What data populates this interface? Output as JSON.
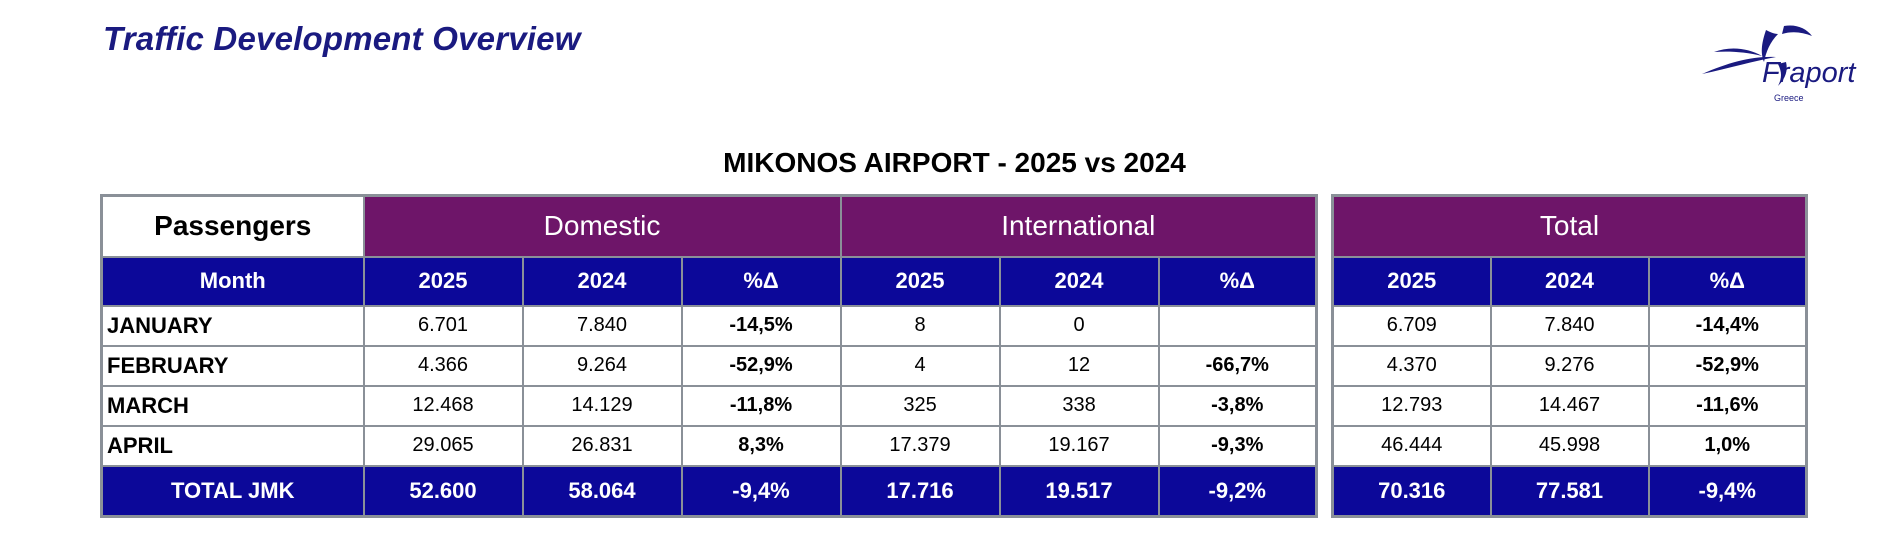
{
  "header": {
    "title": "Traffic Development Overview",
    "logo_text": "Fraport",
    "logo_subtext": "Greece",
    "logo_color": "#1a1a80"
  },
  "report_title": "MIKONOS AIRPORT  - 2025 vs 2024",
  "table": {
    "corner_label": "Passengers",
    "groups": {
      "domestic": "Domestic",
      "international": "International",
      "total": "Total"
    },
    "month_header": "Month",
    "sub_headers": [
      "2025",
      "2024",
      "%Δ"
    ],
    "rows": [
      {
        "month": "JANUARY",
        "dom": [
          "6.701",
          "7.840",
          "-14,5%"
        ],
        "intl": [
          "8",
          "0",
          ""
        ],
        "tot": [
          "6.709",
          "7.840",
          "-14,4%"
        ]
      },
      {
        "month": "FEBRUARY",
        "dom": [
          "4.366",
          "9.264",
          "-52,9%"
        ],
        "intl": [
          "4",
          "12",
          "-66,7%"
        ],
        "tot": [
          "4.370",
          "9.276",
          "-52,9%"
        ]
      },
      {
        "month": "MARCH",
        "dom": [
          "12.468",
          "14.129",
          "-11,8%"
        ],
        "intl": [
          "325",
          "338",
          "-3,8%"
        ],
        "tot": [
          "12.793",
          "14.467",
          "-11,6%"
        ]
      },
      {
        "month": "APRIL",
        "dom": [
          "29.065",
          "26.831",
          "8,3%"
        ],
        "intl": [
          "17.379",
          "19.167",
          "-9,3%"
        ],
        "tot": [
          "46.444",
          "45.998",
          "1,0%"
        ]
      }
    ],
    "total_row": {
      "label": "TOTAL JMK",
      "dom": [
        "52.600",
        "58.064",
        "-9,4%"
      ],
      "intl": [
        "17.716",
        "19.517",
        "-9,2%"
      ],
      "tot": [
        "70.316",
        "77.581",
        "-9,4%"
      ]
    },
    "colors": {
      "group_header": "#6e1569",
      "column_header": "#0c0899",
      "border": "#8a9098"
    }
  }
}
